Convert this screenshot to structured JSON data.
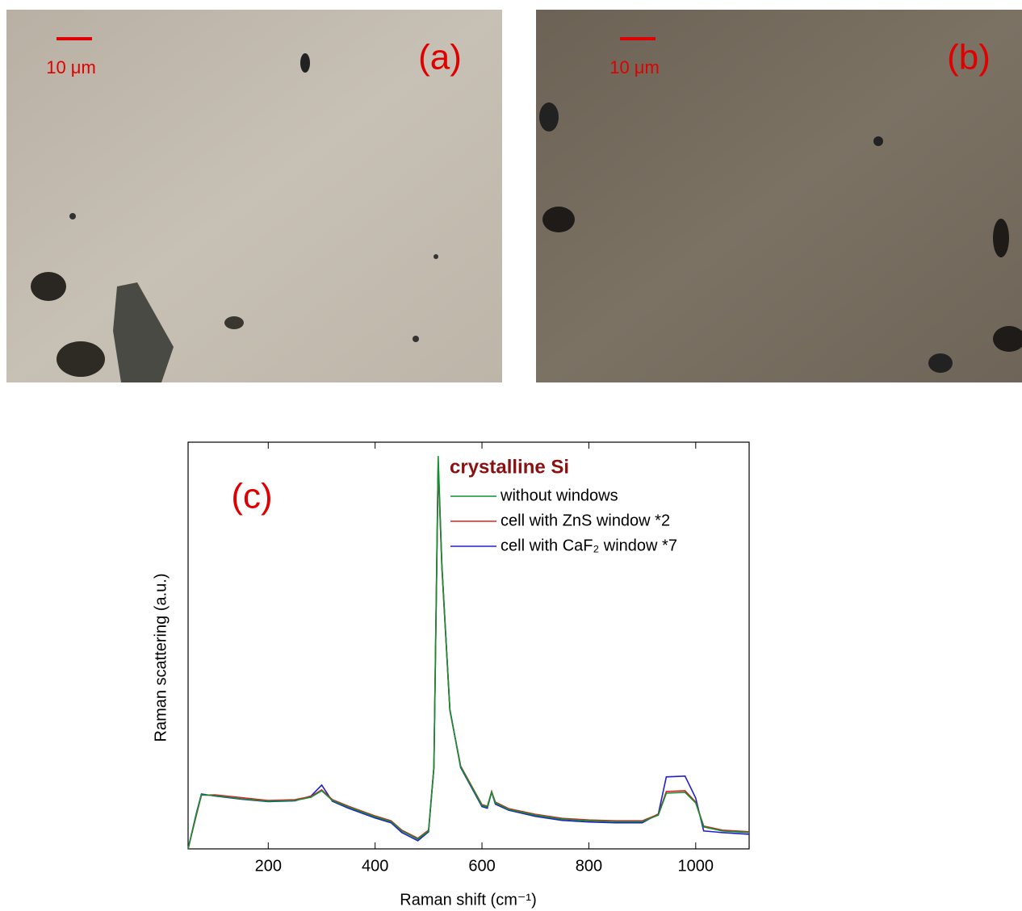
{
  "panels": [
    {
      "label": "(a)",
      "scale_bar": "10 μm"
    },
    {
      "label": "(b)",
      "scale_bar": "10 μm"
    }
  ],
  "chart_data": {
    "type": "line",
    "panel_label": "(c)",
    "legend_title": "crystalline Si",
    "x_label": "Raman shift (cm⁻¹)",
    "y_label": "Raman scattering (a.u.)",
    "xlim": [
      50,
      1100
    ],
    "ylim": [
      0,
      100
    ],
    "xticks": [
      200,
      400,
      600,
      800,
      1000
    ],
    "x": [
      50,
      65,
      75,
      100,
      150,
      200,
      250,
      280,
      300,
      320,
      350,
      400,
      430,
      450,
      480,
      500,
      510,
      518,
      525,
      540,
      560,
      600,
      610,
      618,
      625,
      650,
      700,
      750,
      800,
      850,
      900,
      930,
      945,
      980,
      1000,
      1015,
      1050,
      1100
    ],
    "series": [
      {
        "name": "without windows",
        "color": "#109030",
        "values": [
          0,
          8.3,
          13.3,
          13.1,
          12.3,
          11.7,
          11.9,
          12.7,
          14.3,
          11.9,
          10.3,
          7.9,
          6.7,
          4.4,
          2.4,
          4.4,
          20.2,
          96.6,
          69.8,
          34.1,
          20.2,
          10.7,
          10.3,
          13.9,
          11.3,
          9.7,
          8.3,
          7.3,
          6.9,
          6.7,
          6.7,
          8.3,
          13.7,
          13.9,
          11.3,
          5.4,
          4.4,
          4.0
        ]
      },
      {
        "name": "cell with ZnS window *2",
        "color": "#e02020",
        "values": [
          0,
          8.0,
          13.2,
          13.3,
          12.6,
          11.9,
          12.1,
          12.9,
          14.5,
          12.1,
          10.5,
          8.1,
          6.9,
          4.6,
          2.6,
          4.6,
          20.0,
          95.0,
          69.0,
          34.0,
          20.4,
          10.9,
          10.5,
          14.1,
          11.5,
          9.9,
          8.5,
          7.5,
          7.1,
          6.9,
          6.9,
          8.5,
          14.1,
          14.3,
          11.5,
          5.6,
          4.6,
          4.2
        ]
      },
      {
        "name": "cell with CaF₂ window *7",
        "color": "#2020d0",
        "values": [
          0,
          8.5,
          13.5,
          13.0,
          12.2,
          11.6,
          11.8,
          13.0,
          15.7,
          11.7,
          10.0,
          7.6,
          6.4,
          4.0,
          2.0,
          4.2,
          20.0,
          94.0,
          69.5,
          34.3,
          20.0,
          10.4,
          10.0,
          14.0,
          11.0,
          9.5,
          8.0,
          7.0,
          6.6,
          6.4,
          6.4,
          8.6,
          17.7,
          17.9,
          12.5,
          4.4,
          4.0,
          3.6
        ]
      }
    ]
  }
}
